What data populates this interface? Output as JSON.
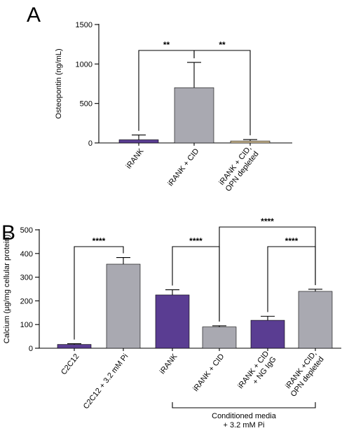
{
  "panels": [
    {
      "letter": "A"
    },
    {
      "letter": "B"
    }
  ],
  "chart_data": [
    {
      "type": "bar",
      "panel": "A",
      "ylabel": "Osteopontin (ng/mL)",
      "ylim": [
        0,
        1500
      ],
      "yticks": [
        "0",
        "500",
        "1000",
        "1500"
      ],
      "categories": [
        [
          "iRANK"
        ],
        [
          "iRANK + CID"
        ],
        [
          "iRANK + CID,",
          "OPN depleted"
        ]
      ],
      "values": [
        40,
        700,
        25
      ],
      "errors": [
        60,
        320,
        18
      ],
      "colors": [
        "#5a3d92",
        "#a9a9b1",
        "#d9c49c"
      ],
      "significance": [
        {
          "from": 0,
          "to": 1,
          "label": "**"
        },
        {
          "from": 1,
          "to": 2,
          "label": "**"
        }
      ]
    },
    {
      "type": "bar",
      "panel": "B",
      "ylabel": "Calcium (µg/mg cellular protein)",
      "ylim": [
        0,
        500
      ],
      "yticks": [
        "0",
        "100",
        "200",
        "300",
        "400",
        "500"
      ],
      "categories": [
        [
          "C2C12"
        ],
        [
          "C2C12 + 3.2 mM Pi"
        ],
        [
          "iRANK"
        ],
        [
          "iRANK + CID"
        ],
        [
          "iRANK + CID",
          "+ NG IgG"
        ],
        [
          "iRANK +CID,",
          "OPN depleted"
        ]
      ],
      "values": [
        16,
        355,
        225,
        90,
        118,
        240
      ],
      "errors": [
        3,
        28,
        22,
        5,
        17,
        9
      ],
      "colors": [
        "#5a3d92",
        "#a9a9b1",
        "#5a3d92",
        "#a9a9b1",
        "#5a3d92",
        "#a9a9b1"
      ],
      "significance": [
        {
          "from": 0,
          "to": 1,
          "label": "****"
        },
        {
          "from": 2,
          "to": 3,
          "label": "****"
        },
        {
          "from": 3,
          "to": 5,
          "label": "****"
        },
        {
          "from": 4,
          "to": 5,
          "label": "****"
        }
      ],
      "group_bracket": {
        "from": 2,
        "to": 5,
        "lines": [
          "Conditioned media",
          "+ 3.2 mM Pi"
        ]
      }
    }
  ]
}
